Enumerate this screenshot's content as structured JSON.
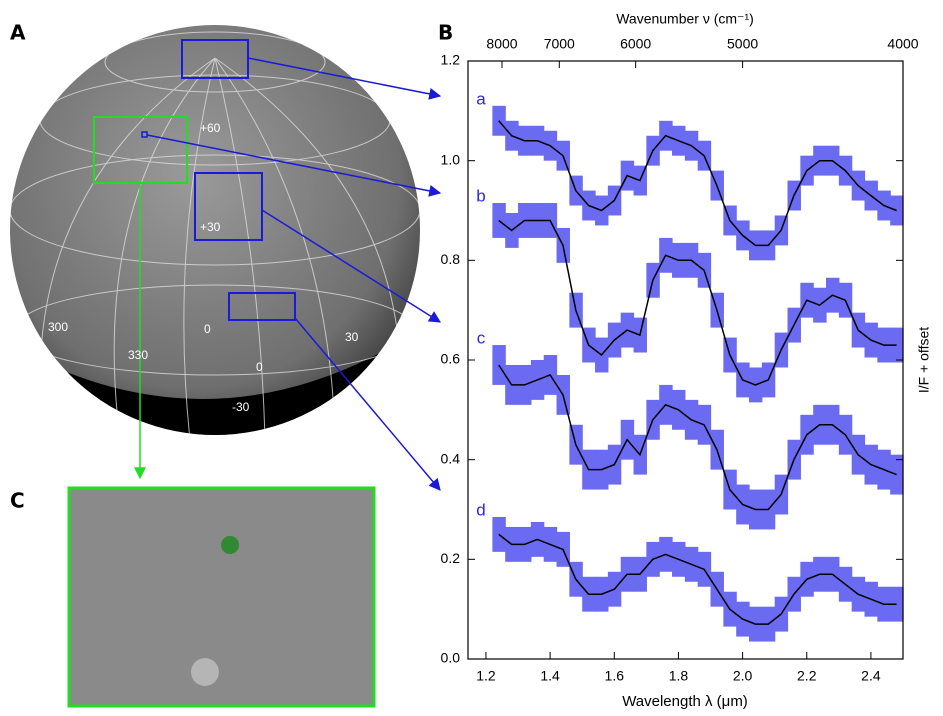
{
  "panel_labels": [
    "A",
    "B",
    "C"
  ],
  "map_labels": [
    "+60",
    "+30",
    "0",
    "300",
    "330",
    "0",
    "30",
    "-30"
  ],
  "chart_data": {
    "type": "line",
    "title": "Wavenumber ν (cm⁻¹)",
    "x_label": "Wavelength λ (μm)",
    "y_label": "I/F + offset",
    "x": [
      1.24,
      1.28,
      1.32,
      1.36,
      1.4,
      1.44,
      1.48,
      1.52,
      1.56,
      1.6,
      1.64,
      1.68,
      1.72,
      1.76,
      1.8,
      1.84,
      1.88,
      1.92,
      1.96,
      2.0,
      2.04,
      2.08,
      2.12,
      2.16,
      2.2,
      2.24,
      2.28,
      2.32,
      2.36,
      2.4,
      2.44,
      2.48
    ],
    "line_color": "#000000",
    "band_color": "#6b6bf2",
    "label_color": "#2a2ad8",
    "series": [
      {
        "name": "a",
        "values": [
          1.08,
          1.05,
          1.04,
          1.04,
          1.03,
          1.01,
          0.94,
          0.91,
          0.9,
          0.92,
          0.97,
          0.96,
          1.02,
          1.05,
          1.04,
          1.03,
          1.01,
          0.95,
          0.88,
          0.85,
          0.83,
          0.83,
          0.86,
          0.93,
          0.98,
          1.0,
          1.0,
          0.98,
          0.95,
          0.93,
          0.91,
          0.9
        ],
        "errors": [
          0.03,
          0.03,
          0.03,
          0.03,
          0.03,
          0.03,
          0.03,
          0.03,
          0.03,
          0.03,
          0.03,
          0.03,
          0.03,
          0.03,
          0.03,
          0.03,
          0.03,
          0.03,
          0.03,
          0.03,
          0.03,
          0.03,
          0.03,
          0.03,
          0.03,
          0.03,
          0.03,
          0.03,
          0.03,
          0.03,
          0.03,
          0.03
        ]
      },
      {
        "name": "b",
        "values": [
          0.88,
          0.86,
          0.88,
          0.88,
          0.88,
          0.83,
          0.7,
          0.63,
          0.61,
          0.64,
          0.66,
          0.65,
          0.76,
          0.81,
          0.8,
          0.8,
          0.78,
          0.7,
          0.61,
          0.56,
          0.55,
          0.56,
          0.62,
          0.67,
          0.72,
          0.71,
          0.73,
          0.72,
          0.66,
          0.64,
          0.63,
          0.63
        ],
        "errors": [
          0.035,
          0.035,
          0.035,
          0.035,
          0.035,
          0.035,
          0.035,
          0.035,
          0.035,
          0.035,
          0.035,
          0.035,
          0.035,
          0.035,
          0.035,
          0.035,
          0.035,
          0.035,
          0.035,
          0.035,
          0.035,
          0.035,
          0.035,
          0.035,
          0.035,
          0.035,
          0.035,
          0.035,
          0.035,
          0.035,
          0.035,
          0.035
        ]
      },
      {
        "name": "c",
        "values": [
          0.59,
          0.55,
          0.55,
          0.56,
          0.57,
          0.53,
          0.43,
          0.38,
          0.38,
          0.39,
          0.44,
          0.41,
          0.48,
          0.51,
          0.5,
          0.48,
          0.47,
          0.42,
          0.34,
          0.31,
          0.3,
          0.3,
          0.33,
          0.4,
          0.45,
          0.47,
          0.47,
          0.45,
          0.41,
          0.39,
          0.38,
          0.37
        ],
        "errors": [
          0.04,
          0.04,
          0.04,
          0.04,
          0.04,
          0.04,
          0.04,
          0.04,
          0.04,
          0.04,
          0.04,
          0.04,
          0.04,
          0.04,
          0.04,
          0.04,
          0.04,
          0.04,
          0.04,
          0.04,
          0.04,
          0.04,
          0.04,
          0.04,
          0.04,
          0.04,
          0.04,
          0.04,
          0.04,
          0.04,
          0.04,
          0.04
        ]
      },
      {
        "name": "d",
        "values": [
          0.25,
          0.23,
          0.23,
          0.24,
          0.23,
          0.22,
          0.16,
          0.13,
          0.13,
          0.14,
          0.17,
          0.17,
          0.2,
          0.21,
          0.2,
          0.19,
          0.18,
          0.14,
          0.1,
          0.08,
          0.07,
          0.07,
          0.09,
          0.13,
          0.16,
          0.17,
          0.17,
          0.15,
          0.13,
          0.12,
          0.11,
          0.11
        ],
        "errors": [
          0.035,
          0.035,
          0.035,
          0.035,
          0.035,
          0.035,
          0.035,
          0.035,
          0.035,
          0.035,
          0.035,
          0.035,
          0.035,
          0.035,
          0.035,
          0.035,
          0.035,
          0.035,
          0.035,
          0.035,
          0.035,
          0.035,
          0.035,
          0.035,
          0.035,
          0.035,
          0.035,
          0.035,
          0.035,
          0.035,
          0.035,
          0.035
        ]
      }
    ],
    "xlim": [
      1.144,
      2.5
    ],
    "ylim": [
      0,
      1.2
    ],
    "xticks": [
      1.2,
      1.4,
      1.6,
      1.8,
      {
        "value": 2.0,
        "label": "2.0"
      },
      2.2,
      2.4
    ],
    "yticks": [
      {
        "value": 0,
        "label": "0.0"
      },
      0.2,
      0.4,
      0.6,
      0.8,
      {
        "value": 1.0,
        "label": "1.0"
      },
      1.2
    ],
    "x2ticks": [
      8000,
      7000,
      6000,
      5000,
      4000
    ]
  }
}
